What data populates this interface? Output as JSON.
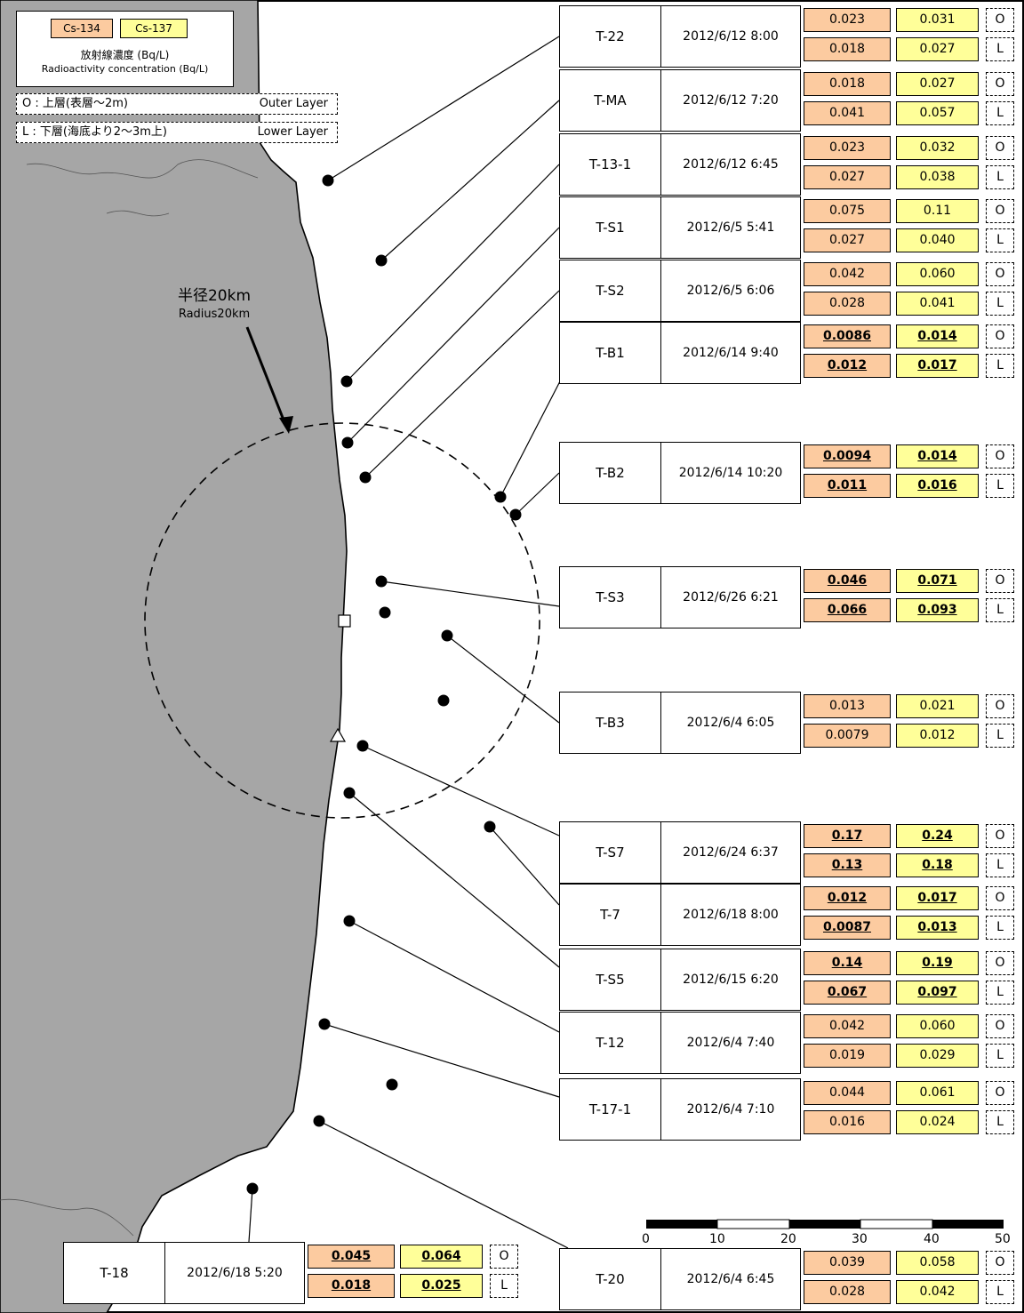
{
  "legend": {
    "cs134_label": "Cs-134",
    "cs137_label": "Cs-137",
    "title_jp": "放射線濃度 (Bq/L)",
    "title_en": "Radioactivity concentration (Bq/L)",
    "cs134_color": "#FCCBA0",
    "cs137_color": "#FFFF99"
  },
  "layers": {
    "outer_jp": "O : 上層(表層～2m)",
    "outer_en": "Outer Layer",
    "lower_jp": "L : 下層(海底より2～3m上)",
    "lower_en": "Lower Layer"
  },
  "radius": {
    "label_jp": "半径20km",
    "label_en": "Radius20km"
  },
  "scale": {
    "ticks": [
      "0",
      "10",
      "20",
      "30",
      "40",
      "50"
    ]
  },
  "samples": [
    {
      "id": "T-22",
      "date": "2012/6/12 8:00",
      "o134": "0.023",
      "o137": "0.031",
      "l134": "0.018",
      "l137": "0.027",
      "o_ul": false,
      "l_ul": false,
      "o_lbl": "O",
      "l_lbl": "L"
    },
    {
      "id": "T-MA",
      "date": "2012/6/12 7:20",
      "o134": "0.018",
      "o137": "0.027",
      "l134": "0.041",
      "l137": "0.057",
      "o_ul": false,
      "l_ul": false,
      "o_lbl": "O",
      "l_lbl": "L"
    },
    {
      "id": "T-13-1",
      "date": "2012/6/12 6:45",
      "o134": "0.023",
      "o137": "0.032",
      "l134": "0.027",
      "l137": "0.038",
      "o_ul": false,
      "l_ul": false,
      "o_lbl": "O",
      "l_lbl": "L"
    },
    {
      "id": "T-S1",
      "date": "2012/6/5 5:41",
      "o134": "0.075",
      "o137": "0.11",
      "l134": "0.027",
      "l137": "0.040",
      "o_ul": false,
      "l_ul": false,
      "o_lbl": "O",
      "l_lbl": "L"
    },
    {
      "id": "T-S2",
      "date": "2012/6/5 6:06",
      "o134": "0.042",
      "o137": "0.060",
      "l134": "0.028",
      "l137": "0.041",
      "o_ul": false,
      "l_ul": false,
      "o_lbl": "O",
      "l_lbl": "L"
    },
    {
      "id": "T-B1",
      "date": "2012/6/14 9:40",
      "o134": "0.0086",
      "o137": "0.014",
      "l134": "0.012",
      "l137": "0.017",
      "o_ul": true,
      "l_ul": true,
      "o_lbl": "O",
      "l_lbl": "L"
    },
    {
      "id": "T-B2",
      "date": "2012/6/14 10:20",
      "o134": "0.0094",
      "o137": "0.014",
      "l134": "0.011",
      "l137": "0.016",
      "o_ul": true,
      "l_ul": true,
      "o_lbl": "O",
      "l_lbl": "L"
    },
    {
      "id": "T-S3",
      "date": "2012/6/26 6:21",
      "o134": "0.046",
      "o137": "0.071",
      "l134": "0.066",
      "l137": "0.093",
      "o_ul": true,
      "l_ul": true,
      "o_lbl": "O",
      "l_lbl": "L"
    },
    {
      "id": "T-B3",
      "date": "2012/6/4 6:05",
      "o134": "0.013",
      "o137": "0.021",
      "l134": "0.0079",
      "l137": "0.012",
      "o_ul": false,
      "l_ul": false,
      "o_lbl": "O",
      "l_lbl": "L"
    },
    {
      "id": "T-S7",
      "date": "2012/6/24 6:37",
      "o134": "0.17",
      "o137": "0.24",
      "l134": "0.13",
      "l137": "0.18",
      "o_ul": true,
      "l_ul": true,
      "o_lbl": "O",
      "l_lbl": "L"
    },
    {
      "id": "T-7",
      "date": "2012/6/18 8:00",
      "o134": "0.012",
      "o137": "0.017",
      "l134": "0.0087",
      "l137": "0.013",
      "o_ul": true,
      "l_ul": true,
      "o_lbl": "O",
      "l_lbl": "L"
    },
    {
      "id": "T-S5",
      "date": "2012/6/15 6:20",
      "o134": "0.14",
      "o137": "0.19",
      "l134": "0.067",
      "l137": "0.097",
      "o_ul": true,
      "l_ul": true,
      "o_lbl": "O",
      "l_lbl": "L"
    },
    {
      "id": "T-12",
      "date": "2012/6/4 7:40",
      "o134": "0.042",
      "o137": "0.060",
      "l134": "0.019",
      "l137": "0.029",
      "o_ul": false,
      "l_ul": false,
      "o_lbl": "O",
      "l_lbl": "L"
    },
    {
      "id": "T-17-1",
      "date": "2012/6/4 7:10",
      "o134": "0.044",
      "o137": "0.061",
      "l134": "0.016",
      "l137": "0.024",
      "o_ul": false,
      "l_ul": false,
      "o_lbl": "O",
      "l_lbl": "L"
    },
    {
      "id": "T-20",
      "date": "2012/6/4 6:45",
      "o134": "0.039",
      "o137": "0.058",
      "l134": "0.028",
      "l137": "0.042",
      "o_ul": false,
      "l_ul": false,
      "o_lbl": "O",
      "l_lbl": "L"
    },
    {
      "id": "T-18",
      "date": "2012/6/18 5:20",
      "o134": "0.045",
      "o137": "0.064",
      "l134": "0.018",
      "l137": "0.025",
      "o_ul": true,
      "l_ul": true,
      "o_lbl": "O",
      "l_lbl": "L"
    }
  ]
}
